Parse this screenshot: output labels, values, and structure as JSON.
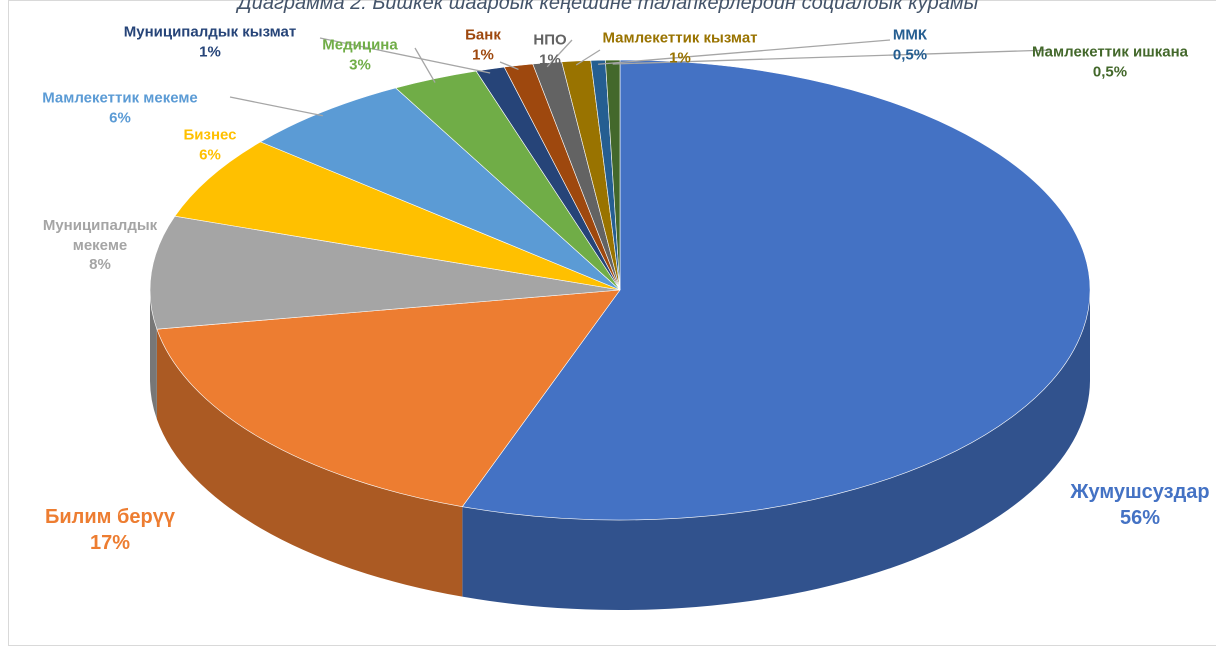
{
  "chart_data": {
    "type": "pie",
    "title": "Диаграмма 2. Бишкек шаардык кеңешине талапкерлердин социалдык курамы",
    "categories": [
      "Жумушсуздар",
      "Билим берүү",
      "Муниципалдык мекеме",
      "Бизнес",
      "Мамлекеттик мекеме",
      "Медицина",
      "Муниципалдык кызмат",
      "Банк",
      "НПО",
      "Мамлекеттик кызмат",
      "ММК",
      "Мамлекеттик ишкана"
    ],
    "values": [
      56,
      17,
      8,
      6,
      6,
      3,
      1,
      1,
      1,
      1,
      0.5,
      0.5
    ],
    "value_labels": [
      "56%",
      "17%",
      "8%",
      "6%",
      "6%",
      "3%",
      "1%",
      "1%",
      "1%",
      "1%",
      "0,5%",
      "0,5%"
    ],
    "colors": [
      "#4472c4",
      "#ed7d31",
      "#a5a5a5",
      "#ffc000",
      "#5b9bd5",
      "#70ad47",
      "#264478",
      "#9e480e",
      "#636363",
      "#997300",
      "#255e91",
      "#43682b"
    ]
  }
}
